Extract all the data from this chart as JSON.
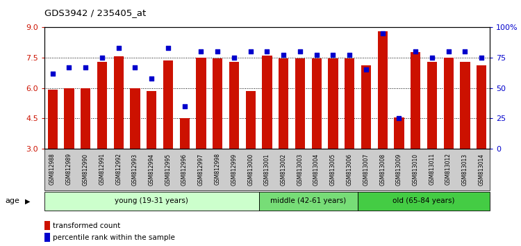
{
  "title": "GDS3942 / 235405_at",
  "categories": [
    "GSM812988",
    "GSM812989",
    "GSM812990",
    "GSM812991",
    "GSM812992",
    "GSM812993",
    "GSM812994",
    "GSM812995",
    "GSM812996",
    "GSM812997",
    "GSM812998",
    "GSM812999",
    "GSM813000",
    "GSM813001",
    "GSM813002",
    "GSM813003",
    "GSM813004",
    "GSM813005",
    "GSM813006",
    "GSM813007",
    "GSM813008",
    "GSM813009",
    "GSM813010",
    "GSM813011",
    "GSM813012",
    "GSM813013",
    "GSM813014"
  ],
  "bar_values": [
    5.9,
    6.0,
    6.0,
    7.3,
    7.55,
    6.0,
    5.85,
    7.35,
    4.5,
    7.5,
    7.45,
    7.3,
    5.85,
    7.6,
    7.45,
    7.45,
    7.45,
    7.45,
    7.45,
    7.1,
    8.8,
    4.55,
    7.75,
    7.3,
    7.5,
    7.3,
    7.1
  ],
  "percentile_values": [
    62,
    67,
    67,
    75,
    83,
    67,
    58,
    83,
    35,
    80,
    80,
    75,
    80,
    80,
    77,
    80,
    77,
    77,
    77,
    65,
    95,
    25,
    80,
    75,
    80,
    80,
    75
  ],
  "bar_color": "#cc1100",
  "dot_color": "#0000cc",
  "ylim_left": [
    3,
    9
  ],
  "ylim_right": [
    0,
    100
  ],
  "yticks_left": [
    3,
    4.5,
    6,
    7.5,
    9
  ],
  "yticks_right": [
    0,
    25,
    50,
    75,
    100
  ],
  "ytick_labels_right": [
    "0",
    "25",
    "50",
    "75",
    "100%"
  ],
  "groups": [
    {
      "label": "young (19-31 years)",
      "start": 0,
      "end": 13,
      "color": "#ccffcc"
    },
    {
      "label": "middle (42-61 years)",
      "start": 13,
      "end": 19,
      "color": "#77dd77"
    },
    {
      "label": "old (65-84 years)",
      "start": 19,
      "end": 27,
      "color": "#44cc44"
    }
  ],
  "age_label": "age",
  "legend": [
    {
      "label": "transformed count",
      "color": "#cc1100"
    },
    {
      "label": "percentile rank within the sample",
      "color": "#0000cc"
    }
  ]
}
